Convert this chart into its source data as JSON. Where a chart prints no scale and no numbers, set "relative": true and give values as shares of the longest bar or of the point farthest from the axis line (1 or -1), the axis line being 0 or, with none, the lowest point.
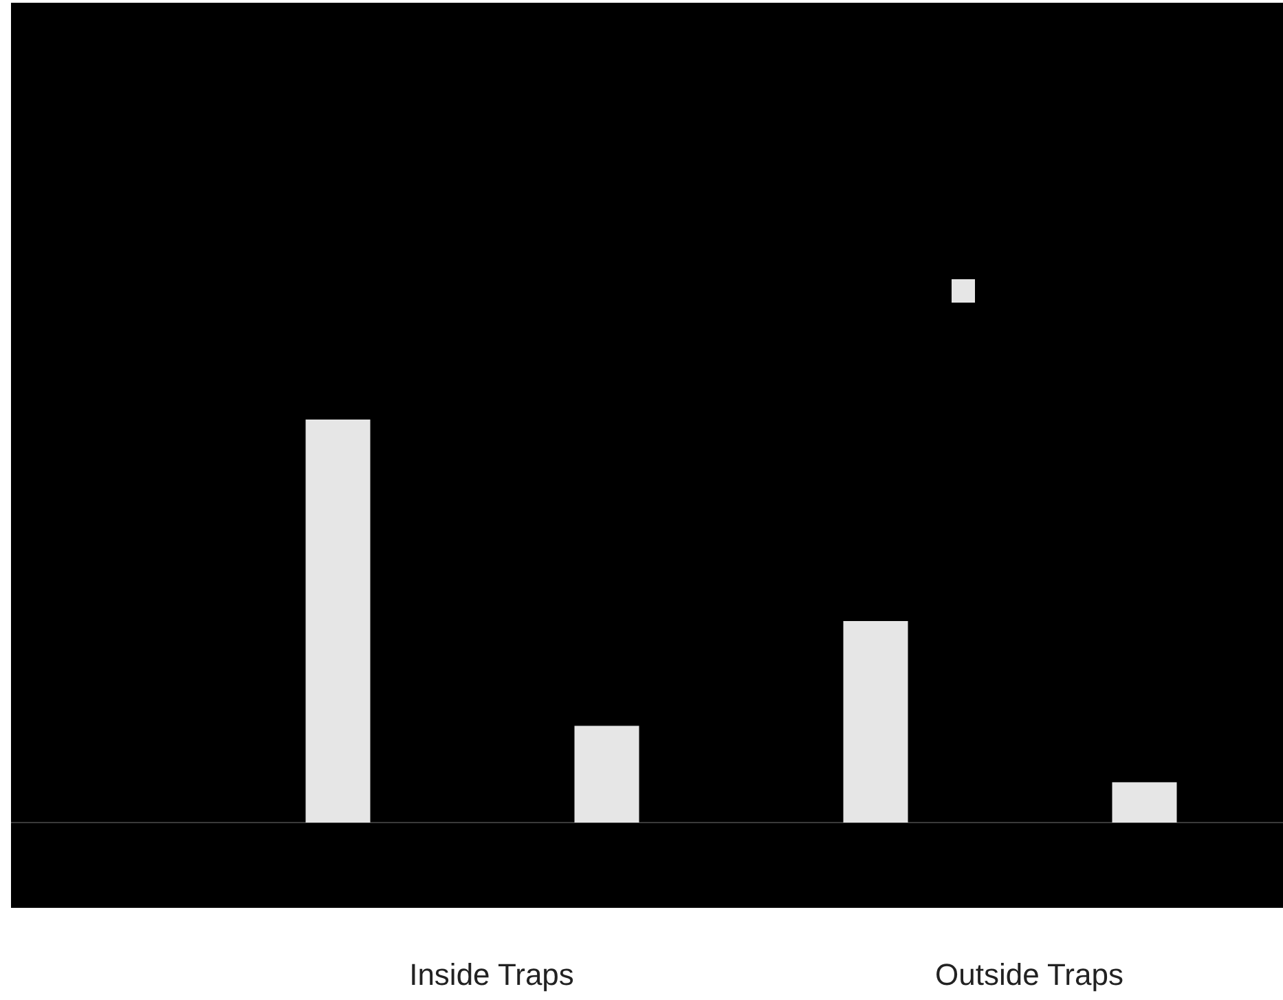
{
  "chart_data": {
    "type": "bar",
    "relative": true,
    "categories": [
      "Inside Traps",
      "Outside Traps"
    ],
    "series": [
      {
        "color": "#e6e6e6",
        "values": [
          1,
          0.5
        ]
      },
      {
        "color": "#e6e6e6",
        "values": [
          0.24,
          0.1
        ]
      }
    ]
  }
}
